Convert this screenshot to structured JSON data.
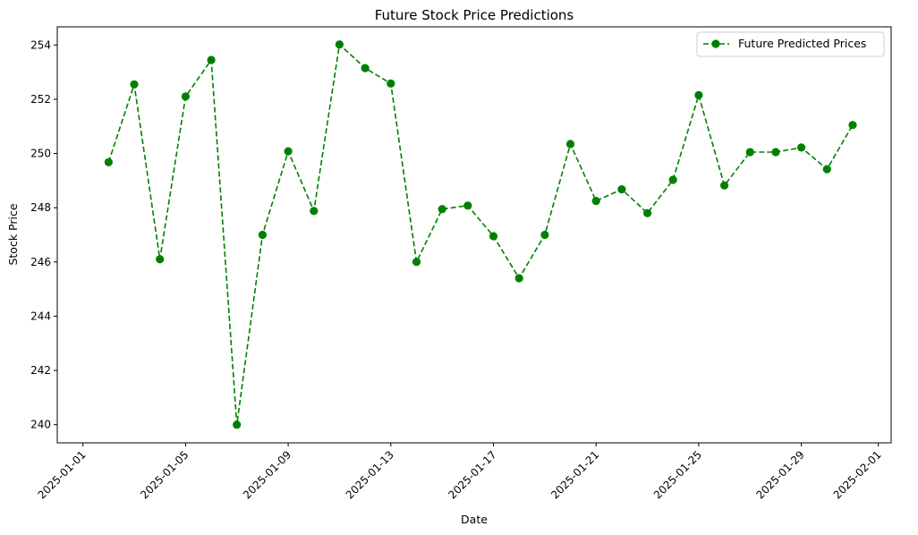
{
  "chart_data": {
    "type": "line",
    "title": "Future Stock Price Predictions",
    "xlabel": "Date",
    "ylabel": "Stock Price",
    "xlim": [
      "2024-12-31T00:00",
      "2025-02-01T12:00"
    ],
    "ylim": [
      239.33,
      254.67
    ],
    "x_ticks": [
      "2025-01-01",
      "2025-01-05",
      "2025-01-09",
      "2025-01-13",
      "2025-01-17",
      "2025-01-21",
      "2025-01-25",
      "2025-01-29",
      "2025-02-01"
    ],
    "y_ticks": [
      240,
      242,
      244,
      246,
      248,
      250,
      252,
      254
    ],
    "grid": false,
    "legend_position": "top-right",
    "colors": {
      "line": "#008000",
      "frame": "#000000",
      "legend_border": "#cccccc"
    },
    "series": [
      {
        "name": "Future Predicted Prices",
        "line_style": "dashed",
        "marker": "circle",
        "x": [
          "2025-01-02",
          "2025-01-03",
          "2025-01-04",
          "2025-01-05",
          "2025-01-06",
          "2025-01-07",
          "2025-01-08",
          "2025-01-09",
          "2025-01-10",
          "2025-01-11",
          "2025-01-12",
          "2025-01-13",
          "2025-01-14",
          "2025-01-15",
          "2025-01-16",
          "2025-01-17",
          "2025-01-18",
          "2025-01-19",
          "2025-01-20",
          "2025-01-21",
          "2025-01-22",
          "2025-01-23",
          "2025-01-24",
          "2025-01-25",
          "2025-01-26",
          "2025-01-27",
          "2025-01-28",
          "2025-01-29",
          "2025-01-30",
          "2025-01-31"
        ],
        "values": [
          249.68,
          252.55,
          246.1,
          252.1,
          253.45,
          240.0,
          247.0,
          250.08,
          247.88,
          254.02,
          253.15,
          252.58,
          246.0,
          247.95,
          248.08,
          246.95,
          245.4,
          247.0,
          250.35,
          248.25,
          248.68,
          247.8,
          249.03,
          252.15,
          248.82,
          250.05,
          250.05,
          250.22,
          249.42,
          251.05
        ]
      }
    ]
  }
}
